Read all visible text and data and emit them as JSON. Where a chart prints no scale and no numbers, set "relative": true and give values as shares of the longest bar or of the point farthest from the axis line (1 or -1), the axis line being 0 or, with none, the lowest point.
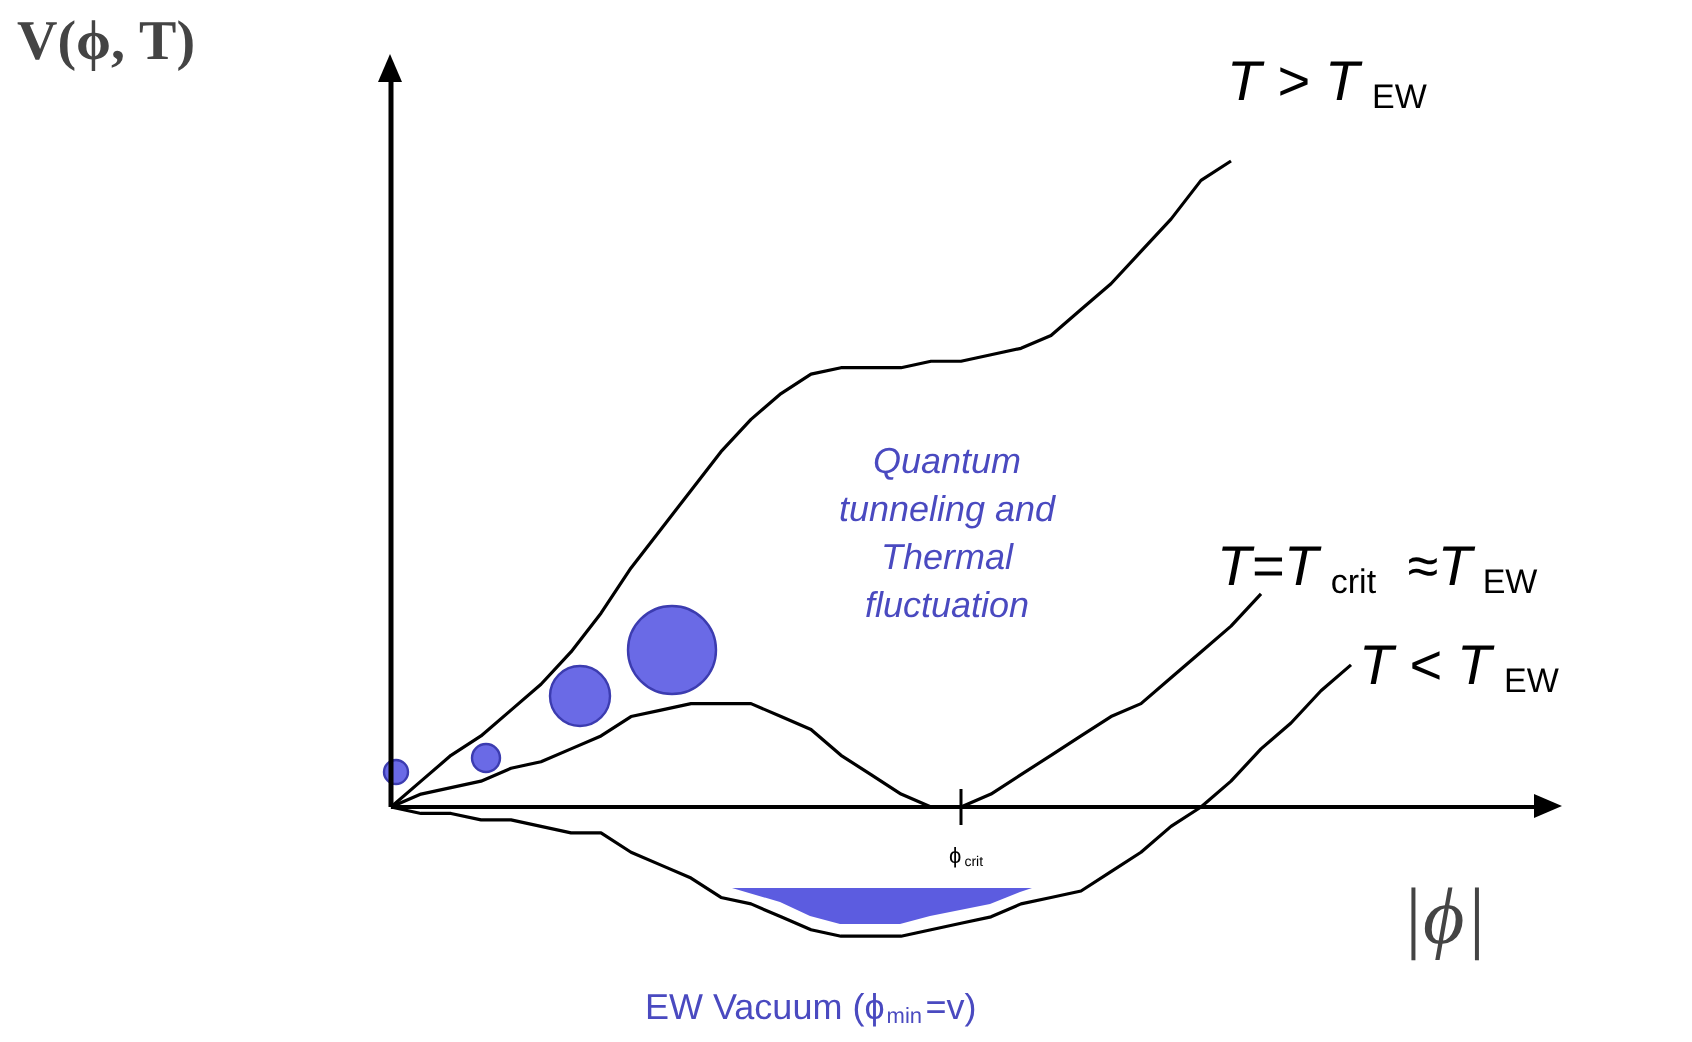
{
  "chart_data": {
    "type": "line",
    "relative": true,
    "ylabel": "V(ϕ, T)",
    "xlabel": "|ϕ|",
    "categories": [
      null,
      null,
      null,
      null,
      null,
      null,
      null,
      null,
      null,
      null,
      null,
      null,
      null,
      null,
      null,
      null,
      null,
      null,
      null,
      null,
      null,
      null,
      null,
      null,
      null,
      null,
      null,
      null,
      null,
      null,
      null,
      null,
      null,
      null
    ],
    "series": [
      {
        "name": "T > T$_{EW}$",
        "color": "#000000",
        "values": [
          0,
          0.04,
          0.08,
          0.11,
          0.15,
          0.19,
          0.24,
          0.3,
          0.37,
          0.43,
          0.49,
          0.55,
          0.6,
          0.64,
          0.67,
          0.68,
          0.68,
          0.68,
          0.69,
          0.69,
          0.7,
          0.71,
          0.73,
          0.77,
          0.81,
          0.86,
          0.91,
          0.97,
          1.0,
          null,
          null,
          null,
          null,
          null
        ]
      },
      {
        "name": "T=T$_{crit}$≈T$_{EW}$",
        "color": "#000000",
        "values": [
          0,
          0.02,
          0.03,
          0.04,
          0.06,
          0.07,
          0.09,
          0.11,
          0.14,
          0.15,
          0.16,
          0.16,
          0.16,
          0.14,
          0.12,
          0.08,
          0.05,
          0.02,
          0.0,
          0.0,
          0.02,
          0.05,
          0.08,
          0.11,
          0.14,
          0.16,
          0.2,
          0.24,
          0.28,
          0.33,
          null,
          null,
          null,
          null
        ]
      },
      {
        "name": "T < T$_{EW}$",
        "color": "#000000",
        "values": [
          0,
          -0.01,
          -0.01,
          -0.02,
          -0.02,
          -0.03,
          -0.04,
          -0.04,
          -0.07,
          -0.09,
          -0.11,
          -0.14,
          -0.15,
          -0.17,
          -0.19,
          -0.2,
          -0.2,
          -0.2,
          -0.19,
          -0.18,
          -0.17,
          -0.15,
          -0.14,
          -0.13,
          -0.1,
          -0.07,
          -0.03,
          0.0,
          0.04,
          0.09,
          0.13,
          0.18,
          0.22,
          null
        ]
      }
    ],
    "annotations": [
      "Quantum\ntunneling and\nThermal\nfluctuation",
      "ϕ$_{crit}$",
      "EW Vacuum  (ϕ$_{min}$=v)"
    ]
  }
}
